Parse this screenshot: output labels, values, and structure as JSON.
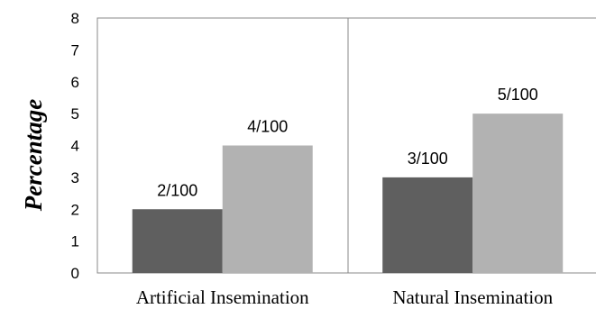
{
  "chart_data": {
    "type": "bar",
    "title": "",
    "xlabel": "",
    "ylabel": "Percentage",
    "ylim": [
      0,
      8
    ],
    "yticks": [
      0,
      1,
      2,
      3,
      4,
      5,
      6,
      7,
      8
    ],
    "grid": false,
    "legend": "none",
    "categories": [
      "Artificial Insemination",
      "Natural Insemination"
    ],
    "series": [
      {
        "values": [
          2,
          3
        ],
        "labels": [
          "2/100",
          "3/100"
        ],
        "color": "#5f5f5f"
      },
      {
        "values": [
          4,
          5
        ],
        "labels": [
          "4/100",
          "5/100"
        ],
        "color": "#b2b2b2"
      }
    ]
  }
}
